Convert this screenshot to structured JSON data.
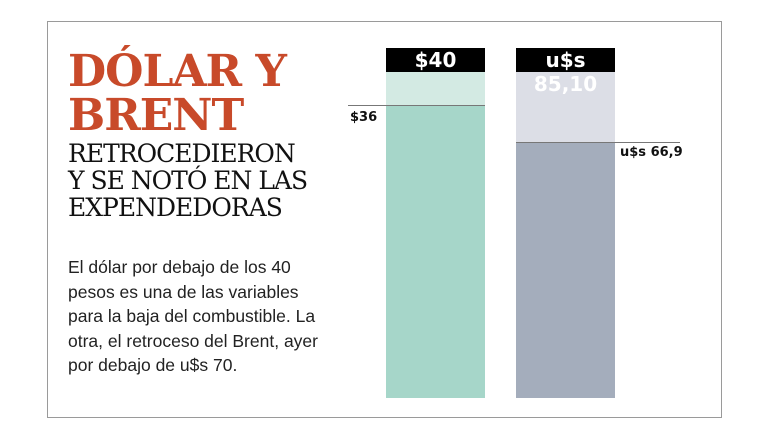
{
  "title": {
    "line1": "DÓLAR Y",
    "line2": "BRENT",
    "sub1": "RETROCEDIERON",
    "sub2": "Y SE NOTÓ EN LAS",
    "sub3": "EXPENDEDORAS"
  },
  "body": "El dólar por debajo de los 40 pesos es una de las variables para la baja del combustible. La otra, el retroceso del  Brent, ayer por debajo de u$s 70.",
  "chart_data": {
    "type": "bar",
    "series": [
      {
        "name": "Dólar",
        "previous": 40,
        "current": 36,
        "previous_label": "$40",
        "current_label": "$36",
        "light": "#d3eae3",
        "dark": "#a6d6c9"
      },
      {
        "name": "Brent",
        "previous": 85.1,
        "current": 66.9,
        "previous_label": "u$s 85,10",
        "current_label": "u$s 66,9",
        "light": "#dcdee6",
        "dark": "#a4adbc"
      }
    ]
  }
}
